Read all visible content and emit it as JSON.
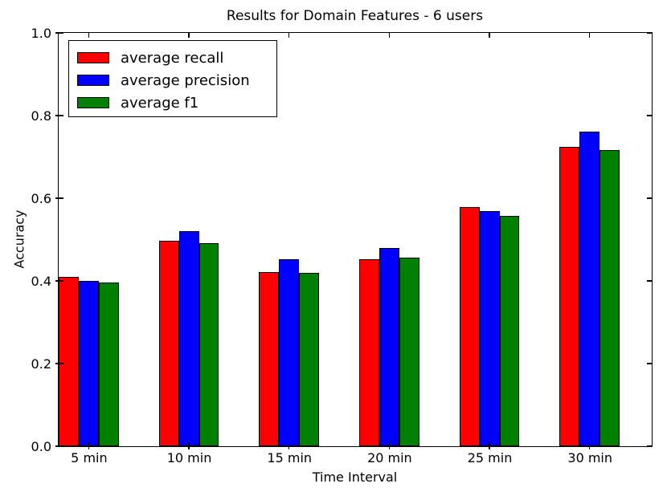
{
  "chart_data": {
    "type": "bar",
    "title": "Results for Domain Features - 6 users",
    "xlabel": "Time Interval",
    "ylabel": "Accuracy",
    "categories": [
      "5 min",
      "10 min",
      "15 min",
      "20 min",
      "25 min",
      "30 min"
    ],
    "series": [
      {
        "name": "average recall",
        "color": "#ff0000",
        "values": [
          0.41,
          0.498,
          0.421,
          0.452,
          0.578,
          0.725
        ]
      },
      {
        "name": "average precision",
        "color": "#0000ff",
        "values": [
          0.4,
          0.521,
          0.452,
          0.48,
          0.569,
          0.762
        ]
      },
      {
        "name": "average f1",
        "color": "#008000",
        "values": [
          0.396,
          0.491,
          0.419,
          0.456,
          0.558,
          0.717
        ]
      }
    ],
    "ylim": [
      0.0,
      1.0
    ],
    "yticks": [
      0.0,
      0.2,
      0.4,
      0.6,
      0.8,
      1.0
    ],
    "xlim": [
      -0.3,
      5.62
    ],
    "bar_width": 0.2,
    "bar_offsets": [
      -0.3,
      -0.1,
      0.1
    ],
    "legend_position": "upper left",
    "grid": false,
    "axis_color": "#000000",
    "background_color": "#ffffff"
  }
}
